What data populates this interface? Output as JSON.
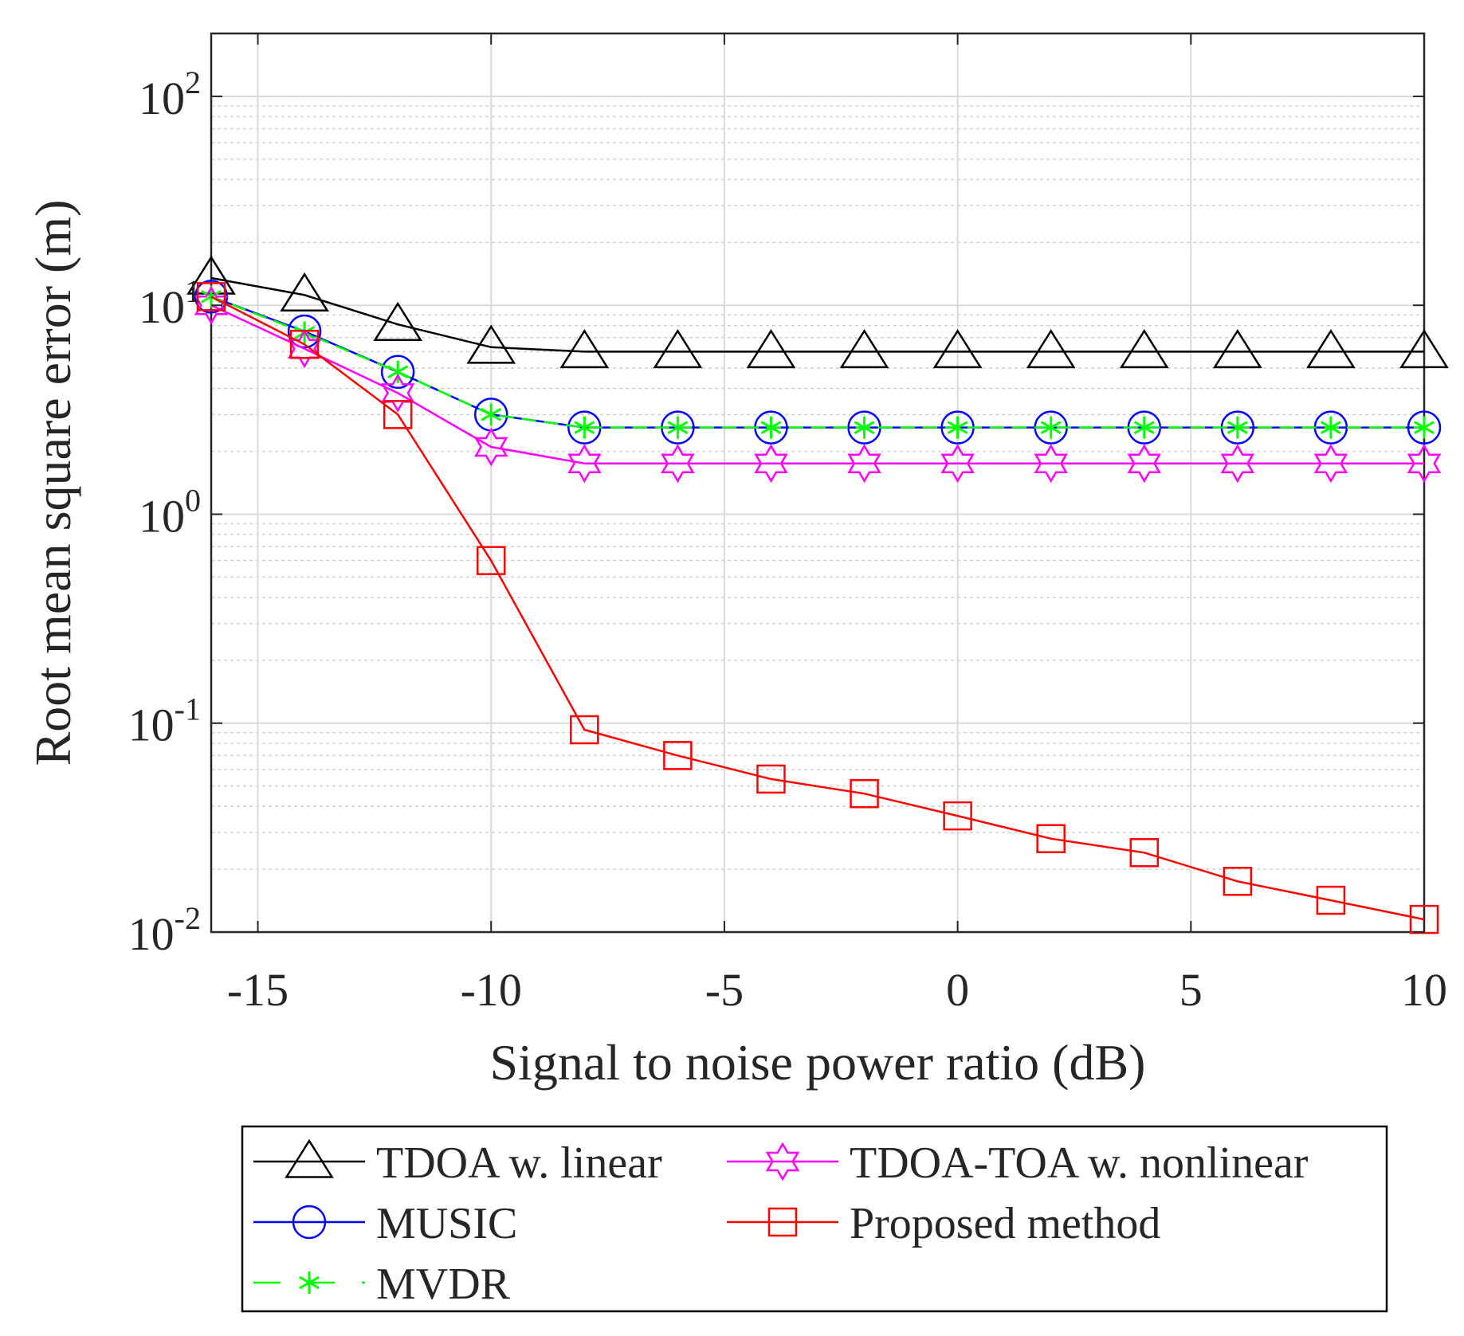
{
  "chart_data": {
    "type": "line",
    "title": "",
    "xlabel": "Signal to noise power ratio (dB)",
    "ylabel": "Root mean square error (m)",
    "xlim": [
      -16,
      10
    ],
    "ylim": [
      0.01,
      200
    ],
    "yscale": "log",
    "grid": true,
    "legend_position": "bottom-outside",
    "x_ticks": [
      -15,
      -10,
      -5,
      0,
      5,
      10
    ],
    "x_tick_labels": [
      "-15",
      "-10",
      "-5",
      "0",
      "5",
      "10"
    ],
    "y_ticks": [
      {
        "value": 100,
        "base": "10",
        "exp": "2"
      },
      {
        "value": 10,
        "base": "10",
        "exp": "1"
      },
      {
        "value": 1,
        "base": "10",
        "exp": "0"
      },
      {
        "value": 0.1,
        "base": "10",
        "exp": "-1"
      },
      {
        "value": 0.01,
        "base": "10",
        "exp": "-2"
      }
    ],
    "x": [
      -16,
      -14,
      -12,
      -10,
      -8,
      -6,
      -4,
      -2,
      0,
      2,
      4,
      6,
      8,
      10
    ],
    "series": [
      {
        "key": "tdoa-linear",
        "name": "TDOA w. linear",
        "color": "#000000",
        "marker": "triangle",
        "dash": "solid",
        "values": [
          13.5,
          11.2,
          8.1,
          6.3,
          6.0,
          6.0,
          6.0,
          6.0,
          6.0,
          6.0,
          6.0,
          6.0,
          6.0,
          6.0
        ]
      },
      {
        "key": "music",
        "name": "MUSIC",
        "color": "#0000ff",
        "marker": "circle",
        "dash": "solid",
        "values": [
          11.0,
          7.5,
          4.8,
          3.0,
          2.6,
          2.6,
          2.6,
          2.6,
          2.6,
          2.6,
          2.6,
          2.6,
          2.6,
          2.6
        ]
      },
      {
        "key": "mvdr",
        "name": "MVDR",
        "color": "#00ff00",
        "marker": "asterisk",
        "dash": "dashed",
        "values": [
          11.0,
          7.4,
          4.8,
          3.0,
          2.6,
          2.6,
          2.6,
          2.6,
          2.6,
          2.6,
          2.6,
          2.6,
          2.6,
          2.6
        ]
      },
      {
        "key": "tdoa-toa",
        "name": "TDOA-TOA w. nonlinear",
        "color": "#ff00ff",
        "marker": "hexagram",
        "dash": "solid",
        "values": [
          10.0,
          6.2,
          3.8,
          2.1,
          1.75,
          1.75,
          1.75,
          1.75,
          1.75,
          1.75,
          1.75,
          1.75,
          1.75,
          1.75
        ]
      },
      {
        "key": "proposed",
        "name": "Proposed method",
        "color": "#ff0000",
        "marker": "square",
        "dash": "solid",
        "values": [
          11.0,
          6.5,
          3.0,
          0.6,
          0.093,
          0.07,
          0.054,
          0.046,
          0.036,
          0.028,
          0.024,
          0.0175,
          0.0142,
          0.0115
        ]
      }
    ],
    "legend_layout": [
      [
        "tdoa-linear",
        "tdoa-toa"
      ],
      [
        "music",
        "proposed"
      ],
      [
        "mvdr",
        null
      ]
    ]
  }
}
